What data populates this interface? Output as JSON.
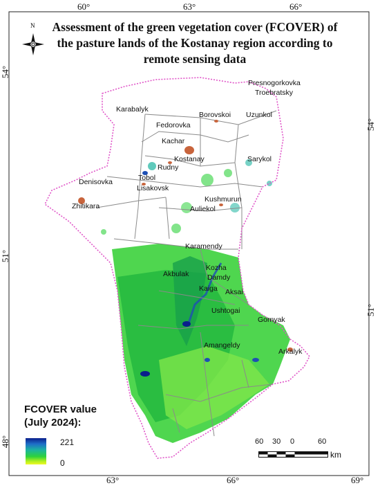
{
  "title": "Assessment of the green vegetation cover (FCOVER) of the pasture lands of the Kostanay region according to remote sensing data",
  "north_arrow": {
    "label": "N",
    "icon": "north-arrow-icon"
  },
  "graticule": {
    "top_ticks": [
      "60°",
      "63°",
      "66°"
    ],
    "bottom_ticks": [
      "63°",
      "66°",
      "69°"
    ],
    "left_ticks": [
      "54°",
      "51°",
      "48°"
    ],
    "right_ticks": [
      "54°",
      "51°"
    ]
  },
  "cities": [
    "Presnogorkovka",
    "Troebratsky",
    "Karabalyk",
    "Borovskoi",
    "Uzunkol",
    "Fedorovka",
    "Kachar",
    "Kostanay",
    "Sarykol",
    "Rudny",
    "Tobol",
    "Denisovka",
    "Lisakovsk",
    "Zhitikara",
    "Kushmurun",
    "Auliekol",
    "Karamendy",
    "Kozha",
    "Akbulak",
    "Damdy",
    "Kaiga",
    "Aksai",
    "Ushtogai",
    "Gornyak",
    "Amangeldy",
    "Arkalyk"
  ],
  "legend": {
    "title": "FCOVER value (July 2024):",
    "max": "221",
    "min": "0",
    "ramp_colors": [
      "#0a1e8c",
      "#1e6ec8",
      "#1cb4a0",
      "#2ed23c",
      "#b4f01e",
      "#f0fa28"
    ]
  },
  "scale_bar": {
    "labels": [
      "60",
      "30",
      "0",
      "60"
    ],
    "unit": "km"
  },
  "colors": {
    "region_border": "#e055c8",
    "district_border": "#8a8a8a",
    "vegetation_high": "#1aa83a",
    "vegetation_low": "#8ee84a",
    "water": "#1e4fb4",
    "city_fill": "#c8643c"
  }
}
